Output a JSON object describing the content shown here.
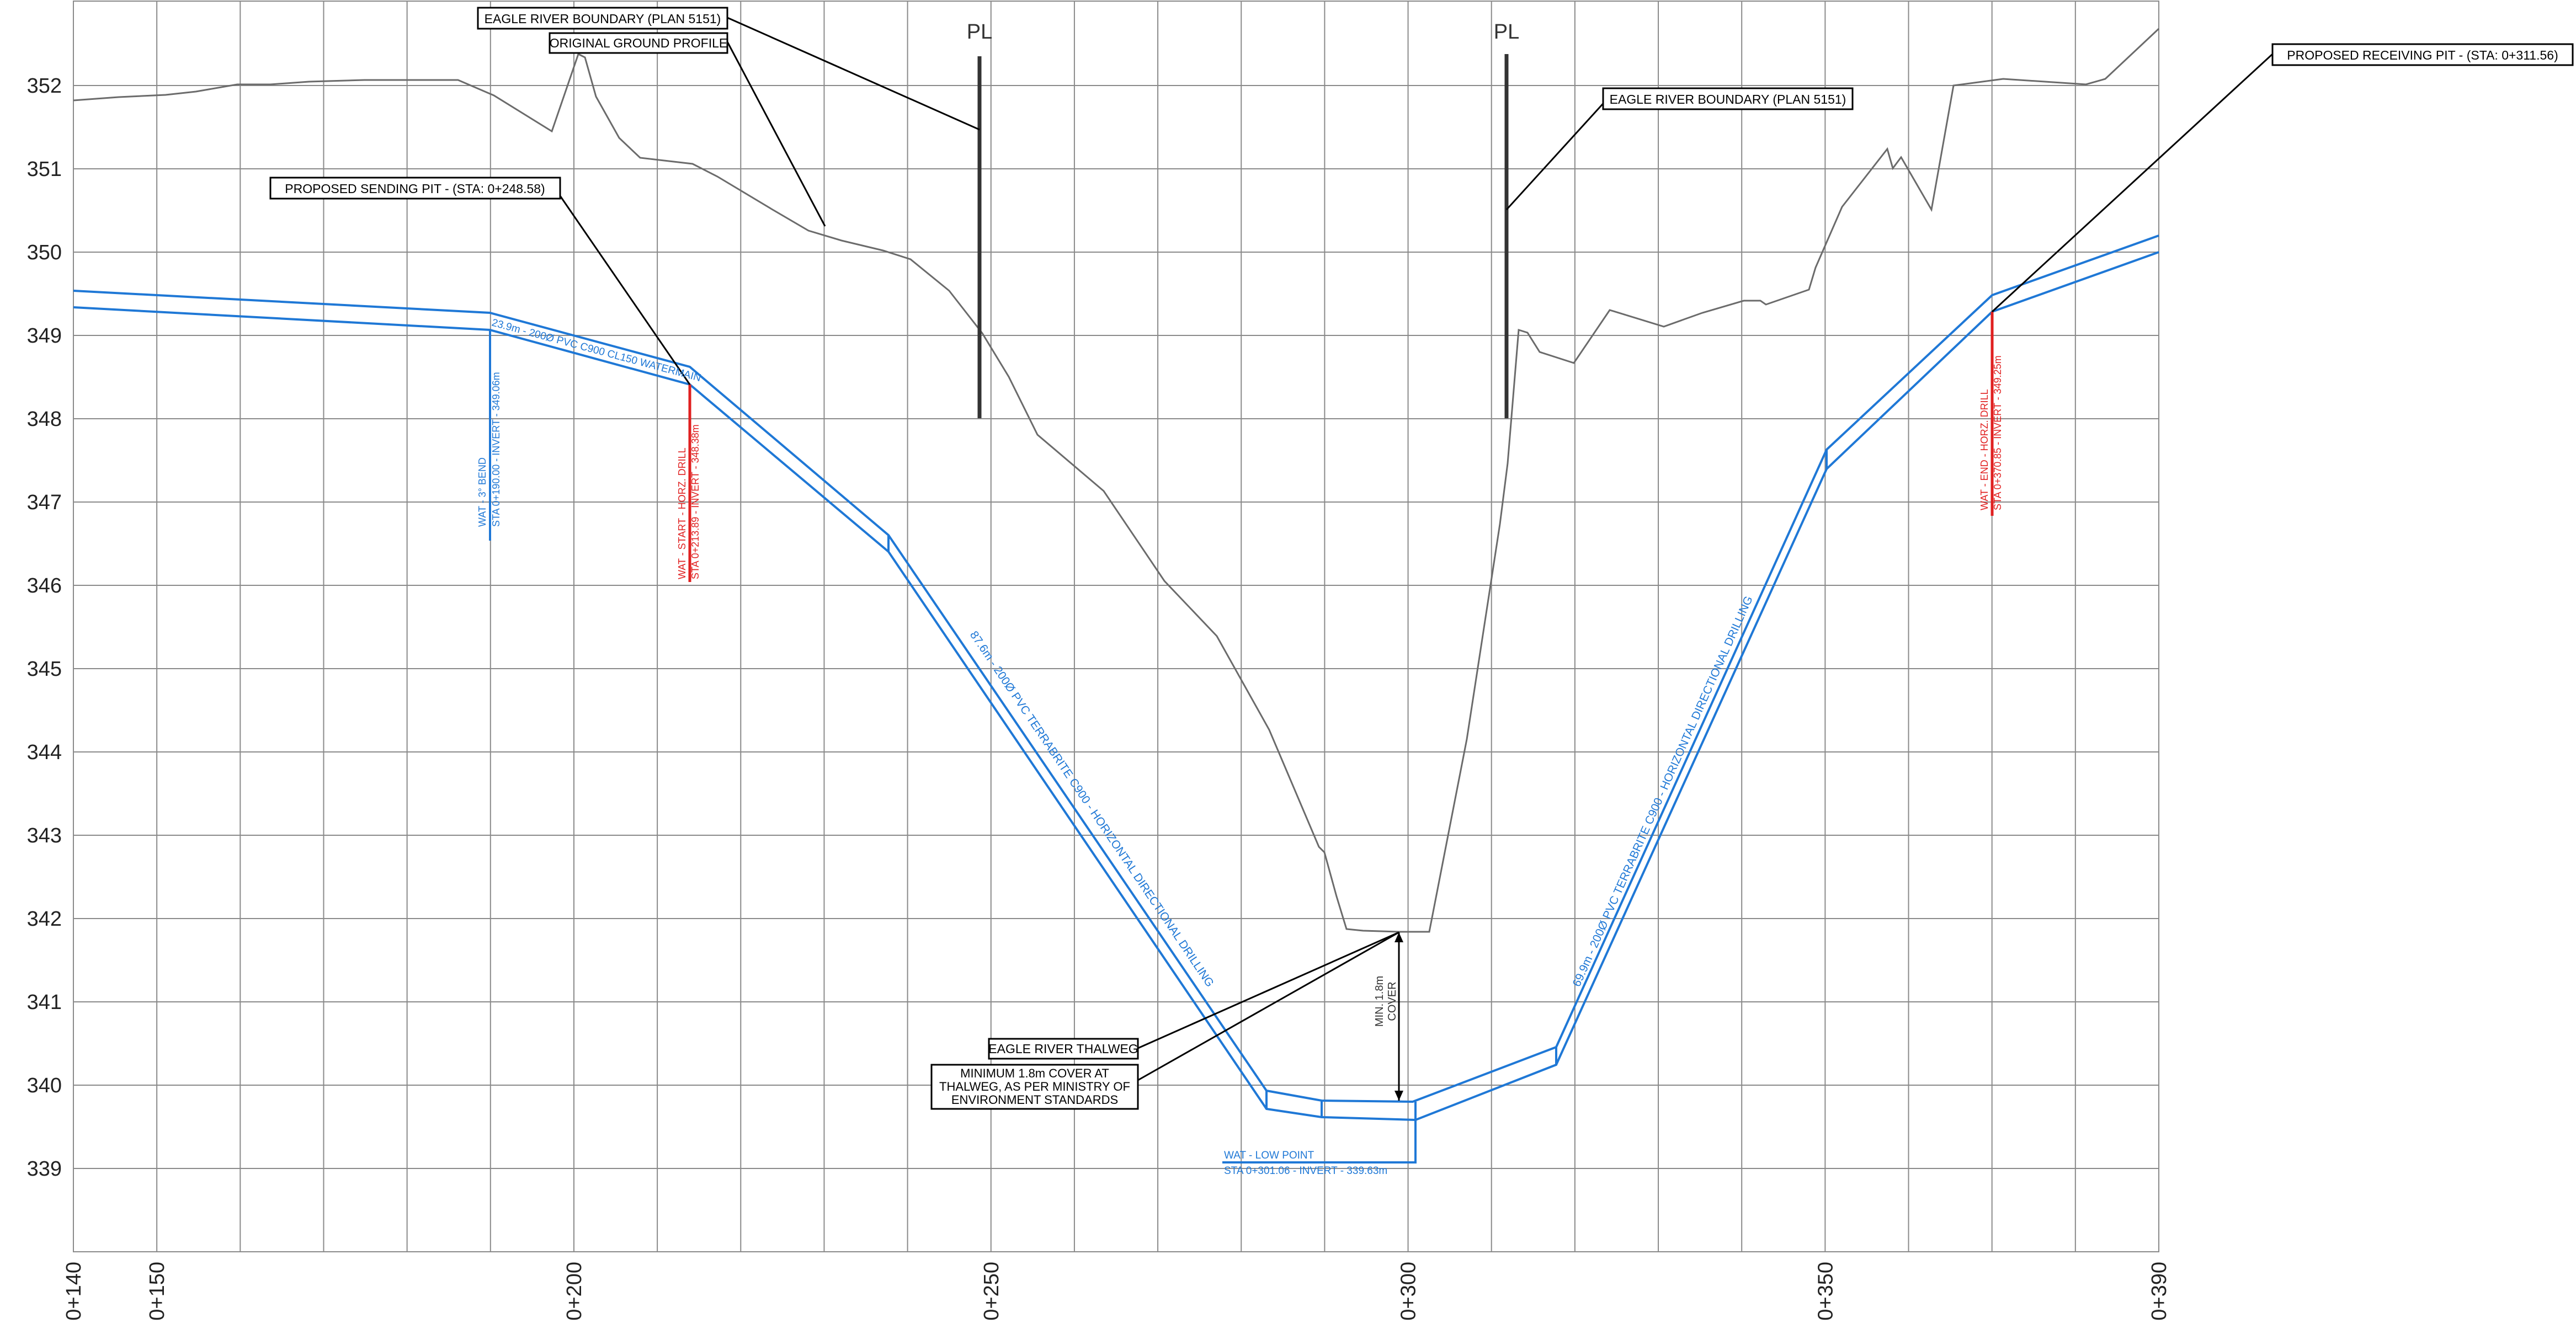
{
  "y_axis": {
    "ticks": [
      "352",
      "351",
      "350",
      "349",
      "348",
      "347",
      "346",
      "345",
      "344",
      "343",
      "342",
      "341",
      "340",
      "339"
    ]
  },
  "x_axis": {
    "ticks": [
      "0+140",
      "0+150",
      "0+200",
      "0+250",
      "0+300",
      "0+350",
      "0+390"
    ]
  },
  "callouts": {
    "river_boundary_left": "EAGLE RIVER BOUNDARY (PLAN 5151)",
    "ground_profile": "ORIGINAL GROUND PROFILE",
    "river_boundary_right": "EAGLE RIVER BOUNDARY (PLAN 5151)",
    "receiving_pit": "PROPOSED RECEIVING PIT - (STA: 0+311.56)",
    "sending_pit": "PROPOSED SENDING PIT - (STA: 0+248.58)",
    "thalweg": "EAGLE RIVER THALWEG",
    "min_cover_note": [
      "MINIMUM 1.8m COVER AT",
      "THALWEG, AS PER MINISTRY OF",
      "ENVIRONMENT STANDARDS"
    ]
  },
  "property_line_symbol": "PL",
  "annotations": {
    "pipe_segment_1": "23.9m - 200Ø PVC C900 CL150 WATERMAIN",
    "pipe_segment_2": "87.6m - 200Ø PVC TERRABRITE C900 - HORIZONTAL DIRECTIONAL DRILLING",
    "pipe_segment_3": "69.9m - 200Ø PVC TERRABRITE C900 - HORIZONTAL DIRECTIONAL DRILLING",
    "bend": [
      "WAT - 3° BEND",
      "STA 0+190.00 - INVERT - 349.06m"
    ],
    "start_drill": [
      "WAT - START - HORZ. DRILL",
      "STA 0+213.89 - INVERT - 348.38m"
    ],
    "end_drill": [
      "WAT - END - HORZ. DRILL",
      "STA 0+370.85 - INVERT - 349.25m"
    ],
    "low_point": [
      "WAT - LOW POINT",
      "STA 0+301.06 - INVERT - 339.63m"
    ],
    "min_cover": [
      "MIN. 1.8m",
      "COVER"
    ]
  },
  "colors": {
    "grid": "#8a8a8a",
    "ground": "#6b6b6b",
    "pipe": "#1f78d6",
    "drill_marker": "#e02020",
    "leader": "#000000"
  }
}
